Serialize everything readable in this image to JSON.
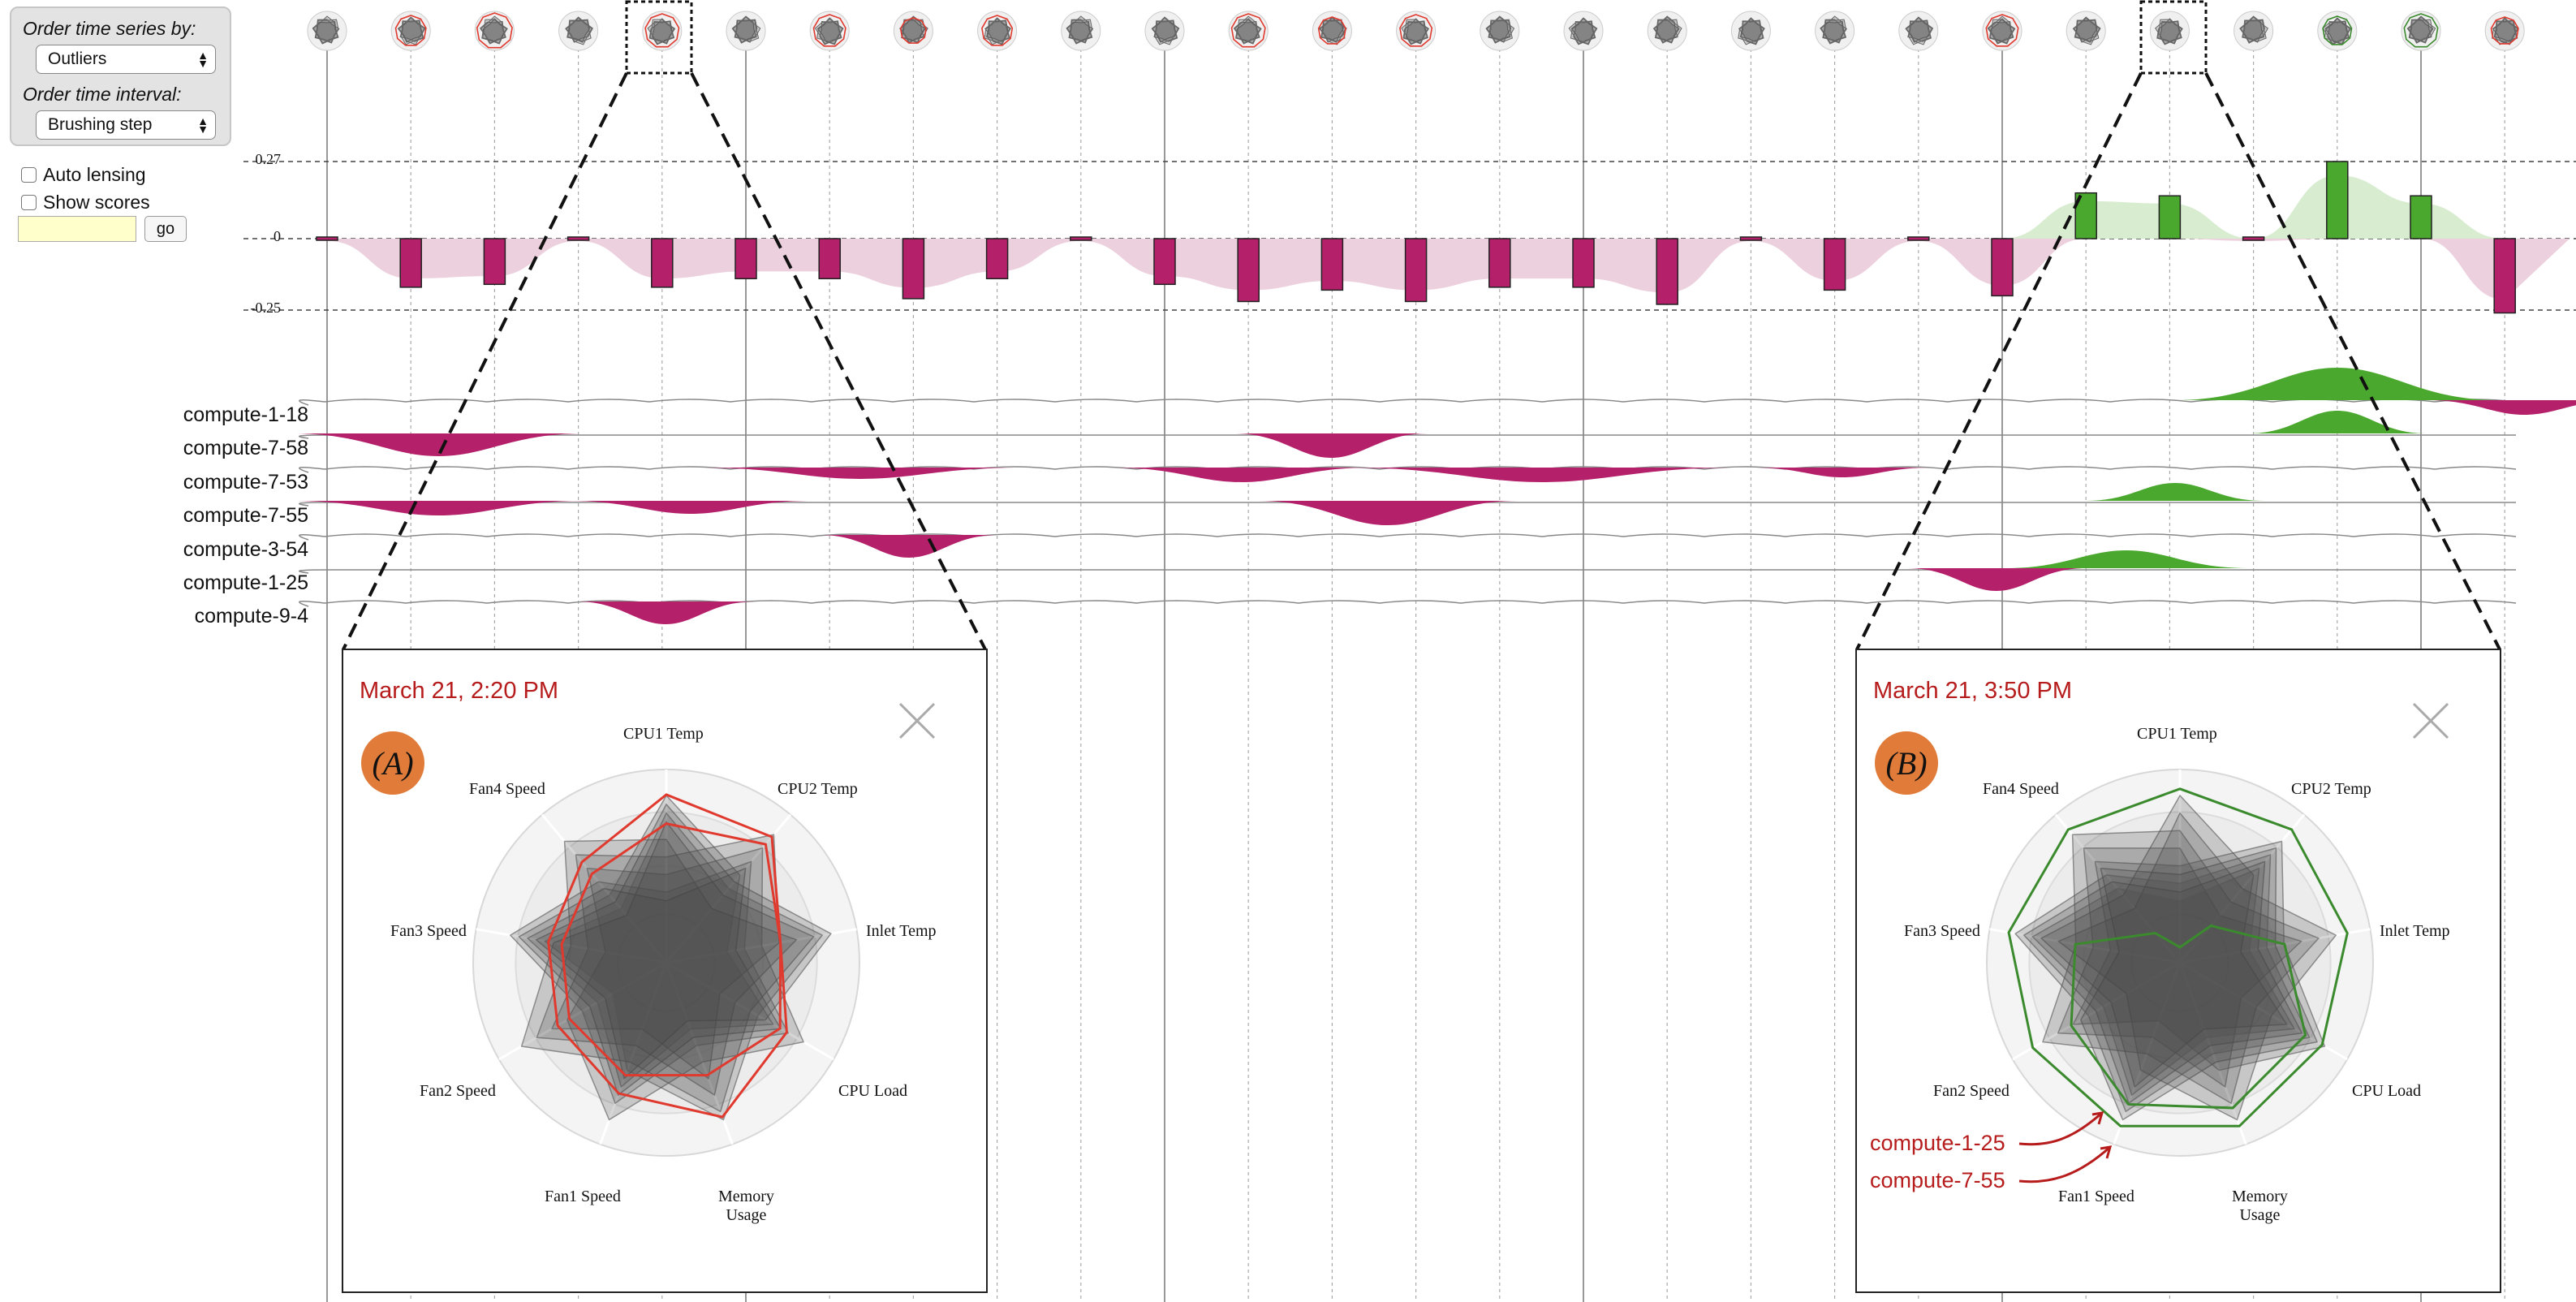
{
  "controls": {
    "order_by_label": "Order time series by:",
    "order_by_value": "Outliers",
    "interval_label": "Order time interval:",
    "interval_value": "Brushing step",
    "auto_lensing_label": "Auto lensing",
    "show_scores_label": "Show scores",
    "search_value": "",
    "go_label": "go"
  },
  "score_axis": {
    "top": "0.27",
    "zero": "0",
    "bottom": "-0.25"
  },
  "timeline": {
    "count": 27,
    "scores": [
      -0.01,
      -0.17,
      -0.16,
      -0.01,
      -0.17,
      -0.14,
      -0.14,
      -0.21,
      -0.14,
      -0.01,
      -0.16,
      -0.22,
      -0.18,
      -0.22,
      -0.17,
      -0.17,
      -0.23,
      -0.01,
      -0.18,
      -0.01,
      -0.2,
      0.16,
      0.15,
      -0.01,
      0.27,
      0.15,
      -0.26
    ],
    "glyph_tint": [
      "gray",
      "red",
      "red",
      "gray",
      "red",
      "gray",
      "red",
      "red",
      "red",
      "gray",
      "gray",
      "red",
      "red",
      "red",
      "gray",
      "gray",
      "gray",
      "gray",
      "gray",
      "gray",
      "red",
      "gray",
      "gray",
      "gray",
      "green",
      "green",
      "red"
    ]
  },
  "hosts": [
    {
      "name": "compute-1-18"
    },
    {
      "name": "compute-7-58"
    },
    {
      "name": "compute-7-53"
    },
    {
      "name": "compute-7-55"
    },
    {
      "name": "compute-3-54"
    },
    {
      "name": "compute-1-25"
    },
    {
      "name": "compute-9-4"
    }
  ],
  "radar_axes": [
    "CPU1 Temp",
    "CPU2 Temp",
    "Inlet Temp",
    "CPU Load",
    "Memory Usage",
    "Fan1 Speed",
    "Fan2 Speed",
    "Fan3 Speed",
    "Fan4 Speed"
  ],
  "lens_a": {
    "title": "March 21, 2:20 PM",
    "badge": "(A)",
    "memory_label_line1": "Memory",
    "memory_label_line2": "Usage",
    "highlight_color": "#e03a2f"
  },
  "lens_b": {
    "title": "March 21, 3:50 PM",
    "badge": "(B)",
    "memory_label_line1": "Memory",
    "memory_label_line2": "Usage",
    "highlight_color": "#3b8a2e",
    "annotation_1": "compute-1-25",
    "annotation_2": "compute-7-55"
  },
  "colors": {
    "negative": "#b5206a",
    "positive": "#4aa82e",
    "negative_light": "#edd0de",
    "positive_light": "#d8ecd0"
  }
}
